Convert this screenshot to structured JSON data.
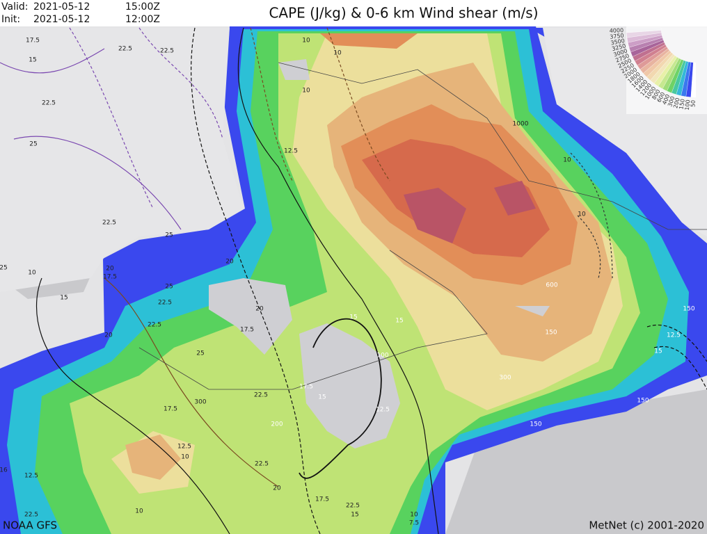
{
  "header": {
    "valid_label": "Valid:",
    "valid_date": "2021-05-12",
    "valid_time": "15:00Z",
    "init_label": "Init:",
    "init_date": "2021-05-12",
    "init_time": "12:00Z",
    "title": "CAPE (J/kg) & 0-6 km Wind shear (m/s)"
  },
  "legend": {
    "labels": [
      "4000",
      "3750",
      "3500",
      "3250",
      "3000",
      "2750",
      "2500",
      "2250",
      "2000",
      "1800",
      "1600",
      "1400",
      "1200",
      "1000",
      "800",
      "600",
      "400",
      "300",
      "200",
      "150",
      "100",
      "50"
    ]
  },
  "map": {
    "contour_labels": [
      "10",
      "10",
      "10",
      "1000",
      "10",
      "10",
      "600",
      "150",
      "150",
      "12.5",
      "15",
      "150",
      "150",
      "300",
      "100",
      "15",
      "15",
      "12.5",
      "15",
      "17.5",
      "200",
      "300",
      "20",
      "20",
      "17.5",
      "22.5",
      "25",
      "25",
      "22.5",
      "20",
      "17.5",
      "20",
      "17.5",
      "12.5",
      "10",
      "22.5",
      "22.5",
      "20",
      "17.5",
      "22.5",
      "12.5",
      "15",
      "17.5",
      "22.5",
      "22.5",
      "22.5",
      "25",
      "22.5",
      "25",
      "10",
      "15",
      "25",
      "10",
      "12.5",
      "16",
      "22.5",
      "10",
      "7.5",
      "15"
    ]
  },
  "footer": {
    "source": "NOAA GFS",
    "credit": "MetNet (c) 2001-2020"
  }
}
